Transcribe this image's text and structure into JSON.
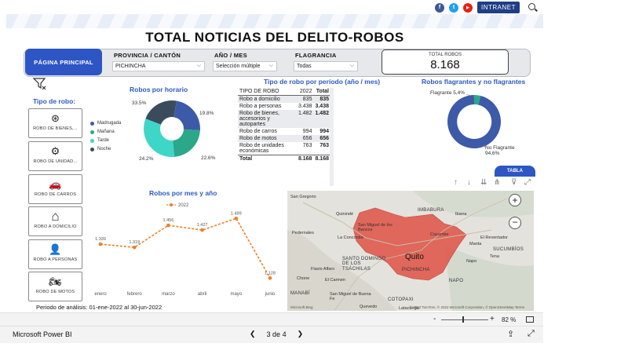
{
  "header": {
    "title": "TOTAL NOTICIAS DEL DELITO-ROBOS",
    "intranet_label": "INTRANET",
    "social": [
      {
        "name": "facebook-icon",
        "glyph": "f",
        "color": "#3b5998"
      },
      {
        "name": "twitter-icon",
        "glyph": "t",
        "color": "#1da1f2"
      },
      {
        "name": "youtube-icon",
        "glyph": "▶",
        "color": "#e62117"
      }
    ]
  },
  "filters": {
    "main_button": "PÁGINA PRINCIPAL",
    "provincia_label": "PROVINCIA / CANTÓN",
    "provincia_value": "PICHINCHA",
    "anio_label": "AÑO / MES",
    "anio_value": "Selección múltiple",
    "flagrancia_label": "FLAGRANCIA",
    "flagrancia_value": "Todas"
  },
  "kpi": {
    "label": "TOTAL ROBOS",
    "value": "8.168"
  },
  "tipo_robo": {
    "title": "Tipo de robo:",
    "buttons": [
      {
        "label": "ROBO DE BIENES,...",
        "icon": "wheel-icon",
        "glyph": "⊛"
      },
      {
        "label": "ROBO DE UNIDAD...",
        "icon": "car-parts-icon",
        "glyph": "⚙"
      },
      {
        "label": "ROBO DE CARROS",
        "icon": "car-icon",
        "glyph": "🚗"
      },
      {
        "label": "ROBO A DOMICILIO",
        "icon": "house-icon",
        "glyph": "⌂"
      },
      {
        "label": "ROBO A PERSONAS",
        "icon": "person-icon",
        "glyph": "👤"
      },
      {
        "label": "ROBO DE MOTOS",
        "icon": "motorcycle-icon",
        "glyph": "🏍"
      }
    ]
  },
  "horario": {
    "title": "Robos por horario",
    "labels": [
      "33.5%",
      "19.8%",
      "22.6%",
      "24.2%"
    ],
    "legend": [
      {
        "name": "Madrugada",
        "color": "#3d5aa8"
      },
      {
        "name": "Mañana",
        "color": "#2aa889"
      },
      {
        "name": "Tarde",
        "color": "#3ed6c6"
      },
      {
        "name": "Noche",
        "color": "#3a4c5c"
      }
    ]
  },
  "tabla_tipo": {
    "title": "Tipo de robo por período (año / mes)",
    "headers": [
      "TIPO DE ROBO",
      "2022",
      "Total"
    ],
    "rows": [
      {
        "tipo": "Robo a domicilio",
        "v2022": "835",
        "total": "835"
      },
      {
        "tipo": "Robo a personas",
        "v2022": "3.438",
        "total": "3.438"
      },
      {
        "tipo": "Robo de bienes, accesorios y autopartes",
        "v2022": "1.482",
        "total": "1.482"
      },
      {
        "tipo": "Robo de carros",
        "v2022": "994",
        "total": "994"
      },
      {
        "tipo": "Robo de motos",
        "v2022": "656",
        "total": "656"
      },
      {
        "tipo": "Robo de unidades económicas",
        "v2022": "763",
        "total": "763"
      }
    ],
    "total": {
      "tipo": "Total",
      "v2022": "8.168",
      "total": "8.168"
    }
  },
  "flagrantes": {
    "title": "Robos flagrantes y no flagrantes",
    "flagrante_label": "Flagrante 5,4%",
    "no_flagrante_label": "No Flagrante",
    "no_flagrante_pct": "94,6%",
    "flagrante_color": "#2aa889",
    "no_flagrante_color": "#3d5aa8"
  },
  "tabla_button": "TABLA",
  "mes_chart": {
    "title": "Robos por mes y año",
    "legend": "2022"
  },
  "chart_data": {
    "type": "line",
    "title": "Robos por mes y año",
    "categories": [
      "enero",
      "febrero",
      "marzo",
      "abril",
      "mayo",
      "junio"
    ],
    "series": [
      {
        "name": "2022",
        "values": [
          1339,
          1319,
          1456,
          1427,
          1499,
          1128
        ],
        "labels": [
          "1.339",
          "1.319",
          "1.456",
          "1.427",
          "1.499",
          "1.128"
        ]
      }
    ],
    "ylim": [
      1100,
      1520
    ],
    "color": "#f07f23"
  },
  "map": {
    "labels": [
      "San Gregorio",
      "Quinindé",
      "IMBABURA",
      "Ibarra",
      "Pedernales",
      "San Miguel de los Bancos",
      "Cayambe",
      "El Reventador",
      "La Concordia",
      "SUCUMBÍOS",
      "Manta",
      "SANTO DOMINGO DE LOS TSÁCHILAS",
      "Quito",
      "Tena",
      "PICHINCHA",
      "Napo",
      "Flavio Alfaro",
      "Chone",
      "El Carmen",
      "NAPO",
      "San Miguel de Buena Fe",
      "COTOPAXI",
      "MANABÍ",
      "Latacunga",
      "Quevedo"
    ],
    "attribution": "© 2022 TomTom, © 2022 Microsoft Corporation, © OpenStreetMap  Terms",
    "brand": "Microsoft Bing"
  },
  "periodo": "Periodo de análisis: 01-ene-2022 al 30-jun-2022",
  "zoom": {
    "minus": "-",
    "plus": "+",
    "value": "82 %"
  },
  "status": {
    "app_name": "Microsoft Power BI",
    "page": "3 de 4"
  }
}
